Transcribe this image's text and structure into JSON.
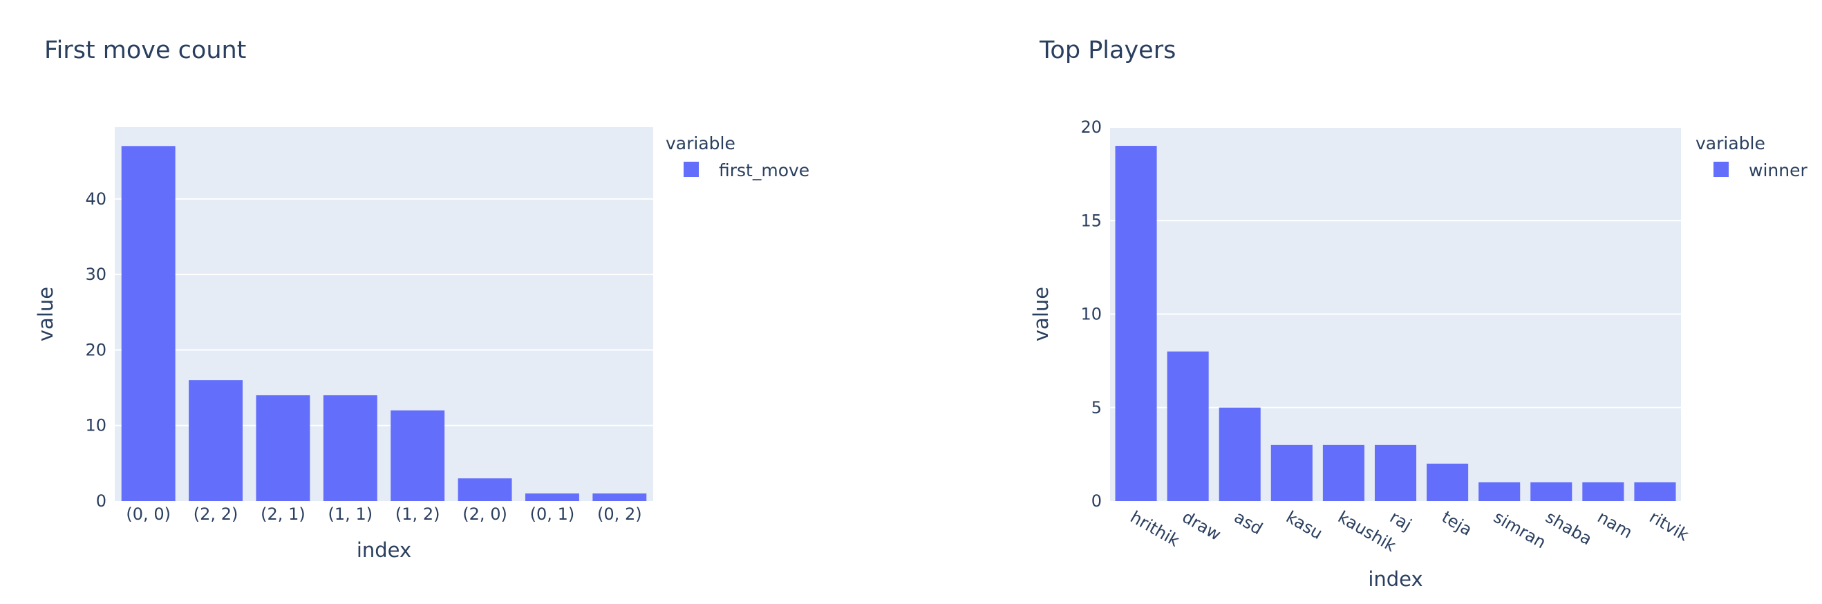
{
  "colors": {
    "bar": "#636efa",
    "plot_bg": "#e5ecf6",
    "grid": "#ffffff",
    "text": "#2a3f5f"
  },
  "chart_data": [
    {
      "type": "bar",
      "title": "First move count",
      "xlabel": "index",
      "ylabel": "value",
      "categories": [
        "(0, 0)",
        "(2, 2)",
        "(2, 1)",
        "(1, 1)",
        "(1, 2)",
        "(2, 0)",
        "(0, 1)",
        "(0, 2)"
      ],
      "series": [
        {
          "name": "first_move",
          "values": [
            47,
            16,
            14,
            14,
            12,
            3,
            1,
            1
          ]
        }
      ],
      "ylim": [
        0,
        49.5
      ],
      "yticks": [
        0,
        10,
        20,
        30,
        40
      ],
      "grid": true,
      "legend": {
        "title": "variable",
        "position": "right"
      },
      "tick_angle": 0
    },
    {
      "type": "bar",
      "title": "Top Players",
      "xlabel": "index",
      "ylabel": "value",
      "categories": [
        "hrithik",
        "draw",
        "asd",
        "kasu",
        "kaushik",
        "raj",
        "teja",
        "simran",
        "shaba",
        "nam",
        "ritvik"
      ],
      "series": [
        {
          "name": "winner",
          "values": [
            19,
            8,
            5,
            3,
            3,
            3,
            2,
            1,
            1,
            1,
            1
          ]
        }
      ],
      "ylim": [
        0,
        20
      ],
      "yticks": [
        0,
        5,
        10,
        15,
        20
      ],
      "grid": true,
      "legend": {
        "title": "variable",
        "position": "right"
      },
      "tick_angle": 30
    }
  ]
}
